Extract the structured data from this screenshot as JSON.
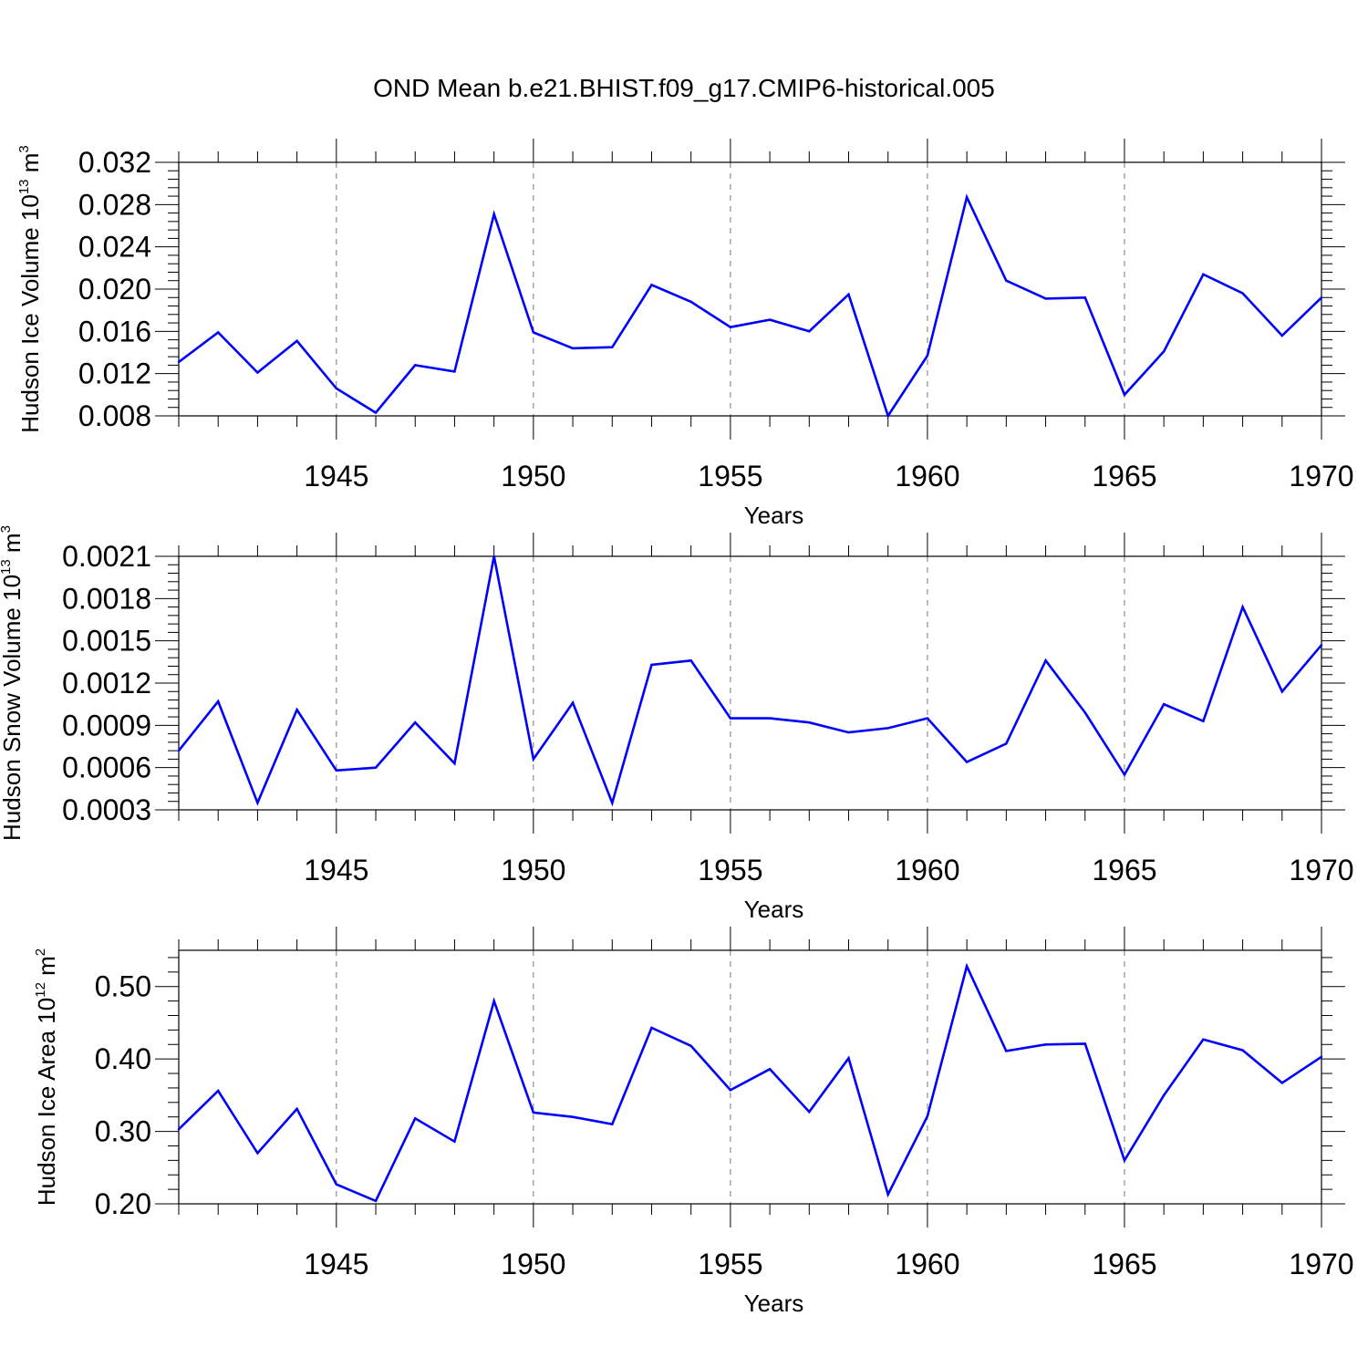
{
  "title": "OND Mean b.e21.BHIST.f09_g17.CMIP6-historical.005",
  "colors": {
    "line": "#0000ff",
    "axis": "#000000",
    "grid": "#777777"
  },
  "chart_data": [
    {
      "type": "line",
      "name": "ice-volume",
      "ylabel": {
        "main": "Hudson Ice Volume 10",
        "exp": "13",
        "unit": " m",
        "unit_exp": "3"
      },
      "xlabel": "Years",
      "xlim": [
        1941,
        1970
      ],
      "ylim": [
        0.008,
        0.032
      ],
      "yticks": [
        0.008,
        0.012,
        0.016,
        0.02,
        0.024,
        0.028,
        0.032
      ],
      "ytick_labels": [
        "0.008",
        "0.012",
        "0.016",
        "0.020",
        "0.024",
        "0.028",
        "0.032"
      ],
      "xticks": [
        1945,
        1950,
        1955,
        1960,
        1965,
        1970
      ],
      "xtick_labels": [
        "1945",
        "1950",
        "1955",
        "1960",
        "1965",
        "1970"
      ],
      "grid": "vertical dashed at major x ticks",
      "x": [
        1941,
        1942,
        1943,
        1944,
        1945,
        1946,
        1947,
        1948,
        1949,
        1950,
        1951,
        1952,
        1953,
        1954,
        1955,
        1956,
        1957,
        1958,
        1959,
        1960,
        1961,
        1962,
        1963,
        1964,
        1965,
        1966,
        1967,
        1968,
        1969,
        1970
      ],
      "values": [
        0.0131,
        0.0159,
        0.0121,
        0.0151,
        0.0106,
        0.0083,
        0.0128,
        0.0122,
        0.0271,
        0.0159,
        0.0144,
        0.0145,
        0.0204,
        0.0188,
        0.0164,
        0.0171,
        0.016,
        0.0195,
        0.008,
        0.0137,
        0.0287,
        0.0208,
        0.0191,
        0.0192,
        0.01,
        0.0141,
        0.0214,
        0.0196,
        0.0156,
        0.0192
      ]
    },
    {
      "type": "line",
      "name": "snow-volume",
      "ylabel": {
        "main": "Hudson Snow Volume 10",
        "exp": "13",
        "unit": " m",
        "unit_exp": "3"
      },
      "xlabel": "Years",
      "xlim": [
        1941,
        1970
      ],
      "ylim": [
        0.0003,
        0.0021
      ],
      "yticks": [
        0.0003,
        0.0006,
        0.0009,
        0.0012,
        0.0015,
        0.0018,
        0.0021
      ],
      "ytick_labels": [
        "0.0003",
        "0.0006",
        "0.0009",
        "0.0012",
        "0.0015",
        "0.0018",
        "0.0021"
      ],
      "xticks": [
        1945,
        1950,
        1955,
        1960,
        1965,
        1970
      ],
      "xtick_labels": [
        "1945",
        "1950",
        "1955",
        "1960",
        "1965",
        "1970"
      ],
      "grid": "vertical dashed at major x ticks",
      "x": [
        1941,
        1942,
        1943,
        1944,
        1945,
        1946,
        1947,
        1948,
        1949,
        1950,
        1951,
        1952,
        1953,
        1954,
        1955,
        1956,
        1957,
        1958,
        1959,
        1960,
        1961,
        1962,
        1963,
        1964,
        1965,
        1966,
        1967,
        1968,
        1969,
        1970
      ],
      "values": [
        0.00072,
        0.00107,
        0.00035,
        0.00101,
        0.00058,
        0.0006,
        0.00092,
        0.00063,
        0.0021,
        0.00066,
        0.00106,
        0.00035,
        0.00133,
        0.00136,
        0.00095,
        0.00095,
        0.00092,
        0.00085,
        0.00088,
        0.00095,
        0.00064,
        0.00077,
        0.00136,
        0.00099,
        0.00055,
        0.00105,
        0.00093,
        0.00174,
        0.00114,
        0.00147
      ]
    },
    {
      "type": "line",
      "name": "ice-area",
      "ylabel": {
        "main": "Hudson Ice Area 10",
        "exp": "12",
        "unit": " m",
        "unit_exp": "2"
      },
      "xlabel": "Years",
      "xlim": [
        1941,
        1970
      ],
      "ylim": [
        0.2,
        0.55
      ],
      "yticks": [
        0.2,
        0.3,
        0.4,
        0.5
      ],
      "ytick_labels": [
        "0.20",
        "0.30",
        "0.40",
        "0.50"
      ],
      "xticks": [
        1945,
        1950,
        1955,
        1960,
        1965,
        1970
      ],
      "xtick_labels": [
        "1945",
        "1950",
        "1955",
        "1960",
        "1965",
        "1970"
      ],
      "grid": "vertical dashed at major x ticks",
      "x": [
        1941,
        1942,
        1943,
        1944,
        1945,
        1946,
        1947,
        1948,
        1949,
        1950,
        1951,
        1952,
        1953,
        1954,
        1955,
        1956,
        1957,
        1958,
        1959,
        1960,
        1961,
        1962,
        1963,
        1964,
        1965,
        1966,
        1967,
        1968,
        1969,
        1970
      ],
      "values": [
        0.303,
        0.356,
        0.27,
        0.331,
        0.227,
        0.204,
        0.318,
        0.286,
        0.48,
        0.326,
        0.32,
        0.31,
        0.443,
        0.418,
        0.357,
        0.386,
        0.327,
        0.401,
        0.213,
        0.321,
        0.528,
        0.411,
        0.42,
        0.421,
        0.26,
        0.35,
        0.427,
        0.412,
        0.367,
        0.403
      ]
    }
  ]
}
